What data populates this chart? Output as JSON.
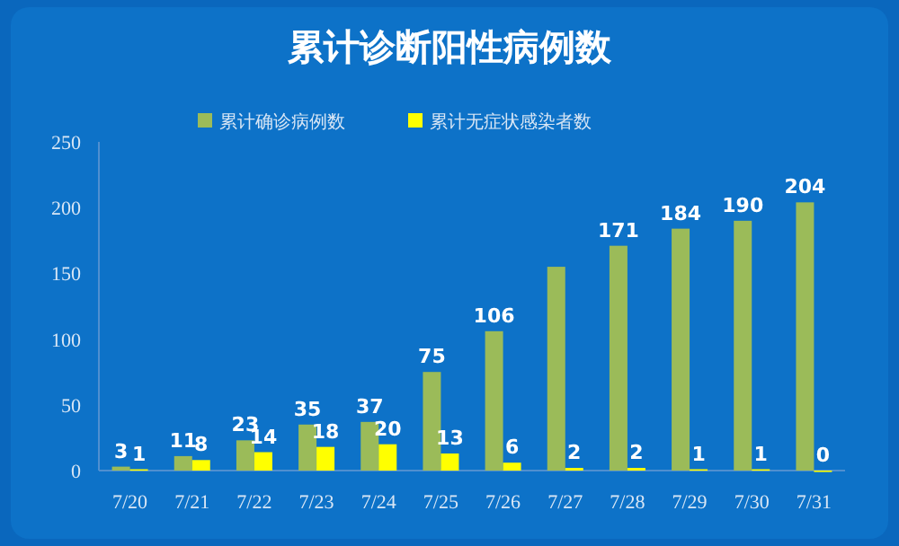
{
  "chart_data": {
    "type": "bar",
    "title": "累计诊断阳性病例数",
    "categories": [
      "7/20",
      "7/21",
      "7/22",
      "7/23",
      "7/24",
      "7/25",
      "7/26",
      "7/27",
      "7/28",
      "7/29",
      "7/30",
      "7/31"
    ],
    "series": [
      {
        "name": "累计确诊病例数",
        "color": "#9bbb59",
        "values": [
          3,
          11,
          23,
          35,
          37,
          75,
          106,
          155,
          171,
          184,
          190,
          204
        ],
        "value_labels": [
          "3",
          "11",
          "23",
          "35",
          "37",
          "75",
          "106",
          null,
          "171",
          "184",
          "190",
          "204"
        ]
      },
      {
        "name": "累计无症状感染者数",
        "color": "#ffff00",
        "values": [
          1,
          8,
          14,
          18,
          20,
          13,
          6,
          2,
          2,
          1,
          1,
          0
        ],
        "value_labels": [
          "1",
          "8",
          "14",
          "18",
          "20",
          "13",
          "6",
          "2",
          "2",
          "1",
          "1",
          "0"
        ]
      }
    ],
    "ylim": [
      0,
      250
    ],
    "yticks": [
      0,
      50,
      100,
      150,
      200,
      250
    ],
    "legend": "top",
    "grid": false
  }
}
